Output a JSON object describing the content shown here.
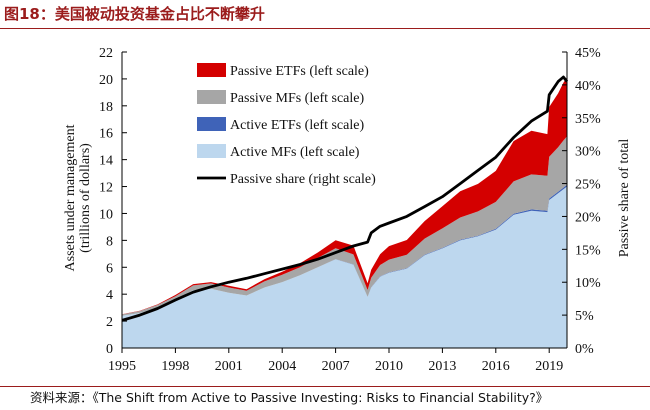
{
  "figure": {
    "title": "图18：美国被动投资基金占比不断攀升",
    "source": "资料来源：《The Shift from Active to Passive Investing: Risks to Financial Stability?》"
  },
  "colors": {
    "title_red": "#9b1c1c",
    "passive_etfs": "#d40000",
    "passive_mfs": "#a6a6a6",
    "active_etfs": "#3f63b8",
    "active_mfs": "#bdd7ee",
    "passive_share": "#000000"
  },
  "chart_data": {
    "type": "area",
    "stacked": true,
    "title": "",
    "ylabel": [
      "Assets under management",
      "(trillions of dollars)"
    ],
    "y2label": "Passive share of total",
    "xlim": [
      1995,
      2020
    ],
    "ylim": [
      0,
      22
    ],
    "y2lim": [
      0,
      45
    ],
    "xticks": [
      "1995",
      "1998",
      "2001",
      "2004",
      "2007",
      "2010",
      "2013",
      "2016",
      "2019"
    ],
    "yticks": [
      "0",
      "2",
      "4",
      "6",
      "8",
      "10",
      "12",
      "14",
      "16",
      "18",
      "20",
      "22"
    ],
    "y2ticks": [
      "0%",
      "5%",
      "10%",
      "15%",
      "20%",
      "25%",
      "30%",
      "35%",
      "40%",
      "45%"
    ],
    "legend": {
      "placement": "top-left",
      "entries": [
        "Passive ETFs (left scale)",
        "Passive MFs (left scale)",
        "Active ETFs (left scale)",
        "Active MFs (left scale)",
        "Passive share (right scale)"
      ]
    },
    "x": [
      1995,
      1996,
      1997,
      1998,
      1999,
      2000,
      2001,
      2002,
      2003,
      2004,
      2005,
      2006,
      2007,
      2008,
      2008.8,
      2009,
      2009.5,
      2010,
      2011,
      2012,
      2013,
      2014,
      2015,
      2016,
      2017,
      2018,
      2018.9,
      2019,
      2019.5,
      2019.8,
      2020
    ],
    "series": [
      {
        "name": "Active MFs",
        "axis": "left",
        "values": [
          2.4,
          2.6,
          3.0,
          3.6,
          4.3,
          4.4,
          4.1,
          3.9,
          4.5,
          4.9,
          5.4,
          6.0,
          6.6,
          6.2,
          3.8,
          4.5,
          5.3,
          5.6,
          5.9,
          6.9,
          7.4,
          8.0,
          8.3,
          8.8,
          9.9,
          10.2,
          10.1,
          11.0,
          11.5,
          11.8,
          12.0
        ]
      },
      {
        "name": "Active ETFs",
        "axis": "left",
        "values": [
          0,
          0,
          0,
          0,
          0,
          0,
          0,
          0,
          0,
          0,
          0,
          0,
          0.01,
          0.01,
          0.01,
          0.02,
          0.02,
          0.02,
          0.03,
          0.03,
          0.04,
          0.05,
          0.05,
          0.06,
          0.08,
          0.1,
          0.1,
          0.11,
          0.12,
          0.12,
          0.13
        ]
      },
      {
        "name": "Passive MFs",
        "axis": "left",
        "values": [
          0.1,
          0.15,
          0.2,
          0.25,
          0.35,
          0.4,
          0.4,
          0.35,
          0.45,
          0.55,
          0.6,
          0.7,
          0.8,
          0.75,
          0.5,
          0.7,
          0.85,
          0.95,
          1.0,
          1.2,
          1.45,
          1.65,
          1.8,
          2.0,
          2.4,
          2.6,
          2.6,
          3.1,
          3.3,
          3.5,
          3.6
        ]
      },
      {
        "name": "Passive ETFs",
        "axis": "left",
        "values": [
          0.01,
          0.02,
          0.04,
          0.09,
          0.1,
          0.1,
          0.12,
          0.12,
          0.16,
          0.22,
          0.3,
          0.4,
          0.6,
          0.65,
          0.5,
          0.6,
          0.8,
          1.0,
          1.1,
          1.3,
          1.65,
          1.95,
          2.05,
          2.3,
          3.0,
          3.25,
          3.1,
          3.7,
          4.0,
          4.3,
          4.4
        ]
      },
      {
        "name": "Passive share",
        "axis": "right",
        "values": [
          4.2,
          5.0,
          6.0,
          7.3,
          8.5,
          9.3,
          10.0,
          10.6,
          11.3,
          12.0,
          12.7,
          13.5,
          14.5,
          15.5,
          16.1,
          17.5,
          18.5,
          19.0,
          20.0,
          21.5,
          23.0,
          25.0,
          27.0,
          29.0,
          32.0,
          34.5,
          36.0,
          38.5,
          40.5,
          41.2,
          40.5
        ]
      }
    ]
  }
}
